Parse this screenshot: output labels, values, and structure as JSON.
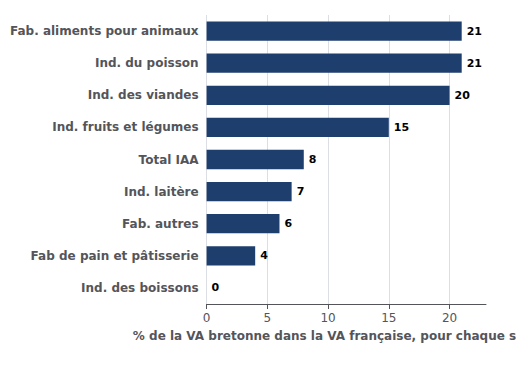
{
  "chart_data": {
    "type": "bar",
    "orientation": "horizontal",
    "categories": [
      "Ind. des boissons",
      "Fab de pain et pâtisserie",
      "Fab. autres",
      "Ind. laitère",
      "Total IAA",
      "Ind. fruits et légumes",
      "Ind. des viandes",
      "Ind. du poisson",
      "Fab. aliments pour animaux"
    ],
    "values": [
      0,
      4,
      6,
      7,
      8,
      15,
      20,
      21,
      21
    ],
    "color": "#1e3f6e",
    "xlabel": "% de la VA bretonne dans la VA française, pour chaque secteur",
    "xlim": [
      0,
      23
    ],
    "xticks": [
      0,
      5,
      10,
      15,
      20
    ],
    "grid": true,
    "data_labels": true
  }
}
